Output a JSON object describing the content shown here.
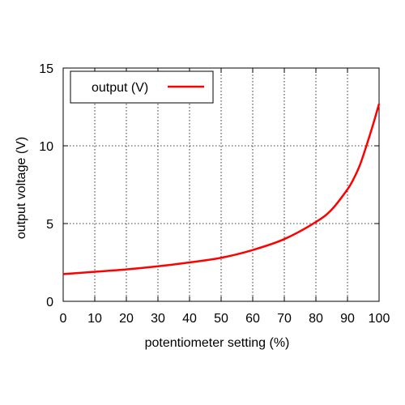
{
  "chart_data": {
    "type": "line",
    "title": "",
    "xlabel": "potentiometer setting (%)",
    "ylabel": "output voltage (V)",
    "xlim": [
      0,
      100
    ],
    "ylim": [
      0,
      15
    ],
    "x_ticks": [
      0,
      10,
      20,
      30,
      40,
      50,
      60,
      70,
      80,
      90,
      100
    ],
    "y_ticks": [
      0,
      5,
      10,
      15
    ],
    "x_tick_labels": [
      "0",
      "10",
      "20",
      "30",
      "40",
      "50",
      "60",
      "70",
      "80",
      "90",
      "100"
    ],
    "y_tick_labels": [
      "0",
      "5",
      "10",
      "15"
    ],
    "grid": true,
    "grid_style": "dotted",
    "legend_position": "top-left",
    "series": [
      {
        "name": "output (V)",
        "color": "#ff0000",
        "x": [
          0,
          10,
          20,
          30,
          40,
          50,
          60,
          70,
          80,
          85,
          90,
          92,
          94,
          96,
          98,
          100
        ],
        "y": [
          1.75,
          1.9,
          2.05,
          2.25,
          2.5,
          2.8,
          3.3,
          4.0,
          5.1,
          5.9,
          7.2,
          7.9,
          8.8,
          10.0,
          11.3,
          12.7
        ]
      }
    ]
  }
}
